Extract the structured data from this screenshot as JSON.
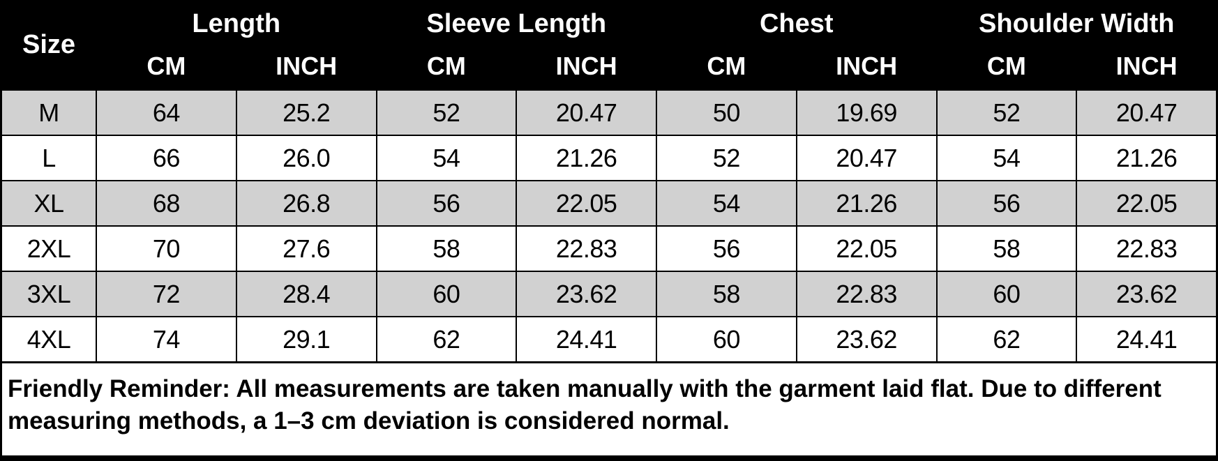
{
  "table": {
    "size_header": "Size",
    "groups": [
      {
        "label": "Length"
      },
      {
        "label": "Sleeve Length"
      },
      {
        "label": "Chest"
      },
      {
        "label": "Shoulder Width"
      }
    ],
    "unit_labels": [
      "CM",
      "INCH",
      "CM",
      "INCH",
      "CM",
      "INCH",
      "CM",
      "INCH"
    ],
    "rows": [
      {
        "size": "M",
        "values": [
          "64",
          "25.2",
          "52",
          "20.47",
          "50",
          "19.69",
          "52",
          "20.47"
        ]
      },
      {
        "size": "L",
        "values": [
          "66",
          "26.0",
          "54",
          "21.26",
          "52",
          "20.47",
          "54",
          "21.26"
        ]
      },
      {
        "size": "XL",
        "values": [
          "68",
          "26.8",
          "56",
          "22.05",
          "54",
          "21.26",
          "56",
          "22.05"
        ]
      },
      {
        "size": "2XL",
        "values": [
          "70",
          "27.6",
          "58",
          "22.83",
          "56",
          "22.05",
          "58",
          "22.83"
        ]
      },
      {
        "size": "3XL",
        "values": [
          "72",
          "28.4",
          "60",
          "23.62",
          "58",
          "22.83",
          "60",
          "23.62"
        ]
      },
      {
        "size": "4XL",
        "values": [
          "74",
          "29.1",
          "62",
          "24.41",
          "60",
          "23.62",
          "62",
          "24.41"
        ]
      }
    ]
  },
  "footer": {
    "note": "Friendly Reminder: All measurements are taken manually with the garment laid flat. Due to different measuring methods, a 1–3 cm deviation is considered normal."
  },
  "colors": {
    "header_bg": "#000000",
    "header_text": "#ffffff",
    "row_bg": "#ffffff",
    "row_alt_bg": "#d1d1d1",
    "border": "#000000",
    "text": "#000000"
  },
  "chart_data": {
    "type": "table",
    "title": "Garment size chart",
    "columns": [
      "Size",
      "Length CM",
      "Length INCH",
      "Sleeve Length CM",
      "Sleeve Length INCH",
      "Chest CM",
      "Chest INCH",
      "Shoulder Width CM",
      "Shoulder Width INCH"
    ],
    "rows": [
      [
        "M",
        64,
        25.2,
        52,
        20.47,
        50,
        19.69,
        52,
        20.47
      ],
      [
        "L",
        66,
        26.0,
        54,
        21.26,
        52,
        20.47,
        54,
        21.26
      ],
      [
        "XL",
        68,
        26.8,
        56,
        22.05,
        54,
        21.26,
        56,
        22.05
      ],
      [
        "2XL",
        70,
        27.6,
        58,
        22.83,
        56,
        22.05,
        58,
        22.83
      ],
      [
        "3XL",
        72,
        28.4,
        60,
        23.62,
        58,
        22.83,
        60,
        23.62
      ],
      [
        "4XL",
        74,
        29.1,
        62,
        24.41,
        60,
        23.62,
        62,
        24.41
      ]
    ]
  }
}
